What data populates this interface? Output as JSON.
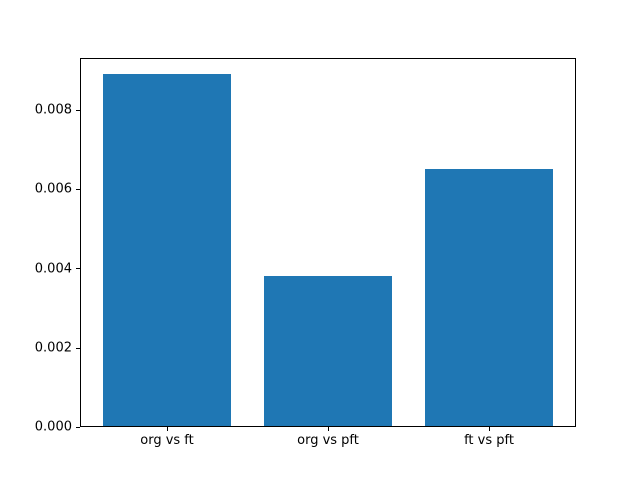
{
  "chart_data": {
    "type": "bar",
    "title": "",
    "xlabel": "",
    "ylabel": "",
    "categories": [
      "org vs ft",
      "org vs pft",
      "ft vs pft"
    ],
    "values": [
      0.0089,
      0.0038,
      0.0065
    ],
    "bar_color": "#1f77b4",
    "bar_width": 0.8,
    "xlim": [
      -0.54,
      2.54
    ],
    "ylim": [
      0,
      0.00931
    ],
    "yticks": [
      0,
      0.002,
      0.004,
      0.006,
      0.008
    ],
    "ytick_labels": [
      "0.000",
      "0.002",
      "0.004",
      "0.006",
      "0.008"
    ],
    "grid": false,
    "legend": null,
    "background": "#ffffff",
    "axes_color": "#000000",
    "tick_label_color": "#000000"
  }
}
